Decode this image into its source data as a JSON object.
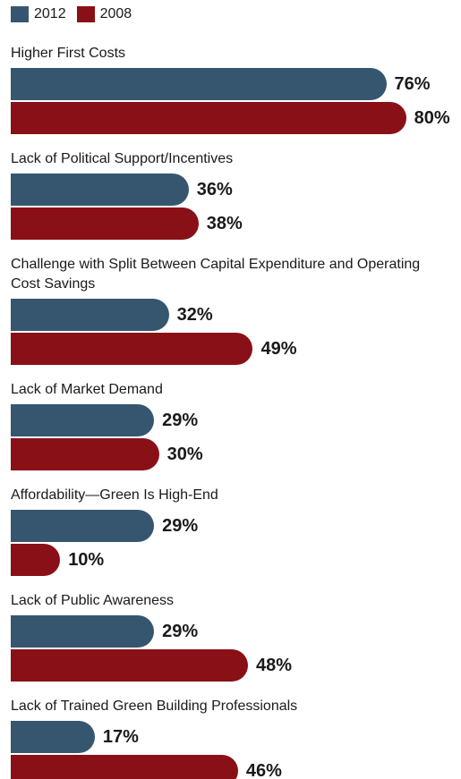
{
  "chart_data": {
    "type": "bar",
    "orientation": "horizontal",
    "categories": [
      "Higher First Costs",
      "Lack of Political Support/Incentives",
      "Challenge with Split Between Capital Expenditure and Operating Cost Savings",
      "Lack of Market Demand",
      "Affordability—Green Is High-End",
      "Lack of Public Awareness",
      "Lack of Trained Green Building Professionals"
    ],
    "series": [
      {
        "name": "2012",
        "color": "#36566f",
        "values": [
          76,
          36,
          32,
          29,
          29,
          29,
          17
        ],
        "value_labels": [
          "76%",
          "36%",
          "32%",
          "29%",
          "29%",
          "29%",
          "17%"
        ]
      },
      {
        "name": "2008",
        "color": "#8a1017",
        "values": [
          80,
          38,
          49,
          30,
          10,
          48,
          46
        ],
        "value_labels": [
          "80%",
          "38%",
          "49%",
          "30%",
          "10%",
          "48%",
          "46%"
        ]
      }
    ]
  }
}
